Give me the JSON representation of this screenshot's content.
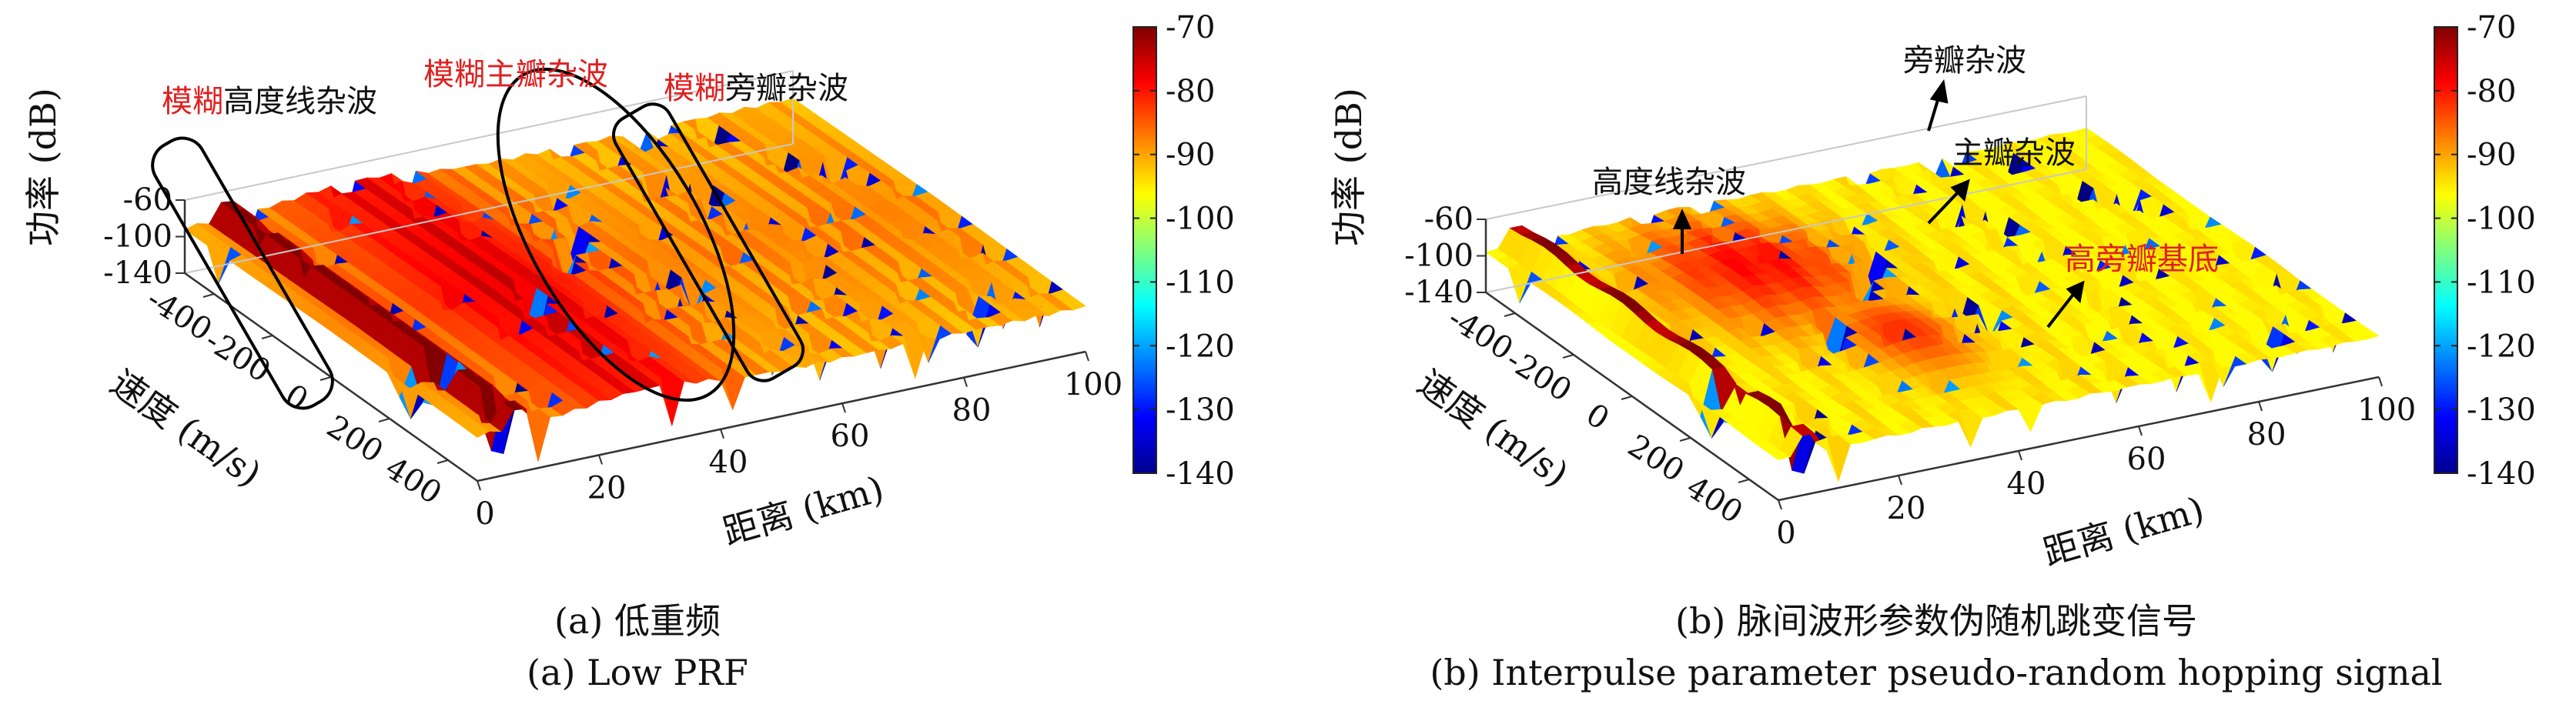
{
  "chart_data": [
    {
      "type": "surface",
      "id": "a",
      "caption_cn": "(a) 低重频",
      "caption_en": "(a) Low PRF",
      "xlabel": "距离 (km)",
      "ylabel": "速度 (m/s)",
      "zlabel": "功率 (dB)",
      "x_ticks": [
        "0",
        "20",
        "40",
        "60",
        "80",
        "100"
      ],
      "y_ticks": [
        "-400",
        "-200",
        "0",
        "200",
        "400"
      ],
      "z_ticks": [
        "-60",
        "-100",
        "-140"
      ],
      "xlim": [
        0,
        100
      ],
      "ylim": [
        -500,
        500
      ],
      "zlim": [
        -140,
        -60
      ],
      "colorbar": {
        "ticks": [
          "-70",
          "-80",
          "-90",
          "-100",
          "-110",
          "-120",
          "-130",
          "-140"
        ],
        "range": [
          -140,
          -70
        ],
        "colormap": "jet"
      },
      "annotations": [
        {
          "red": "模糊",
          "black": "高度线杂波"
        },
        {
          "red": "模糊主瓣杂波",
          "black": ""
        },
        {
          "red": "模糊",
          "black": "旁瓣杂波"
        }
      ],
      "features": {
        "noise_floor_db": -103,
        "altitude_line_db": -70,
        "mainlobe_db": -72,
        "sidelobe_db": -92
      }
    },
    {
      "type": "surface",
      "id": "b",
      "caption_cn": "(b) 脉间波形参数伪随机跳变信号",
      "caption_en": "(b) Interpulse parameter pseudo-random hopping signal",
      "xlabel": "距离 (km)",
      "ylabel": "速度 (m/s)",
      "zlabel": "功率 (dB)",
      "x_ticks": [
        "0",
        "20",
        "40",
        "60",
        "80",
        "100"
      ],
      "y_ticks": [
        "-400",
        "-200",
        "0",
        "200",
        "400"
      ],
      "z_ticks": [
        "-60",
        "-100",
        "-140"
      ],
      "xlim": [
        0,
        100
      ],
      "ylim": [
        -500,
        500
      ],
      "zlim": [
        -140,
        -60
      ],
      "colorbar": {
        "ticks": [
          "-70",
          "-80",
          "-90",
          "-100",
          "-110",
          "-120",
          "-130",
          "-140"
        ],
        "range": [
          -140,
          -70
        ],
        "colormap": "jet"
      },
      "annotations": [
        {
          "text": "旁瓣杂波",
          "color": "#111111"
        },
        {
          "text": "主瓣杂波",
          "color": "#111111"
        },
        {
          "text": "高度线杂波",
          "color": "#111111"
        },
        {
          "text": "高旁瓣基底",
          "color": "#e02020"
        }
      ],
      "features": {
        "noise_floor_db": -103,
        "altitude_line_db": -70,
        "mainlobe_db": -80,
        "sidelobe_pedestal_db": -92
      }
    }
  ],
  "colors": {
    "annotation_red": "#e02020",
    "text": "#111111"
  }
}
